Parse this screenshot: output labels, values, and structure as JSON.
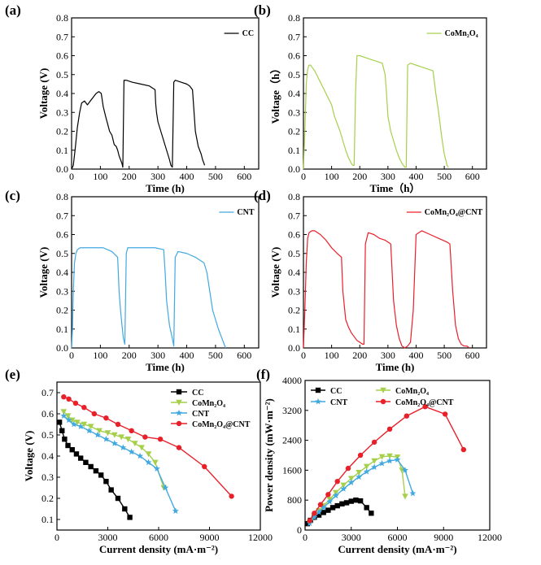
{
  "chart_data": [
    {
      "id": "a",
      "panel_label": "(a)",
      "type": "line",
      "xlabel": "Time (h)",
      "ylabel": "Voltage (V)",
      "xlim": [
        0,
        650
      ],
      "ylim": [
        0,
        0.8
      ],
      "xticks": [
        0,
        100,
        200,
        300,
        400,
        500,
        600
      ],
      "yticks": [
        0.0,
        0.1,
        0.2,
        0.3,
        0.4,
        0.5,
        0.6,
        0.7,
        0.8
      ],
      "legend": "top-right",
      "series": [
        {
          "name": "CC",
          "color": "#000000",
          "x": [
            0,
            6,
            12,
            20,
            28,
            35,
            45,
            55,
            65,
            75,
            85,
            95,
            103,
            110,
            118,
            125,
            132,
            140,
            148,
            155,
            160,
            165,
            170,
            175,
            178,
            182,
            190,
            210,
            240,
            270,
            290,
            292,
            295,
            300,
            310,
            320,
            330,
            340,
            345,
            350,
            355,
            360,
            380,
            400,
            410,
            420,
            430,
            440,
            450,
            455,
            460,
            462
          ],
          "y": [
            0,
            0.02,
            0.1,
            0.22,
            0.3,
            0.35,
            0.36,
            0.34,
            0.36,
            0.38,
            0.4,
            0.41,
            0.4,
            0.33,
            0.28,
            0.24,
            0.2,
            0.18,
            0.13,
            0.12,
            0.1,
            0.07,
            0.05,
            0.03,
            0.01,
            0.47,
            0.47,
            0.46,
            0.45,
            0.44,
            0.42,
            0.35,
            0.3,
            0.25,
            0.2,
            0.15,
            0.1,
            0.05,
            0.02,
            0.01,
            0.46,
            0.47,
            0.46,
            0.45,
            0.44,
            0.42,
            0.2,
            0.12,
            0.08,
            0.05,
            0.03,
            0.02
          ]
        }
      ]
    },
    {
      "id": "b",
      "panel_label": "(b)",
      "type": "line",
      "xlabel": "Time（h）",
      "ylabel": "Voltage（h）",
      "xlim": [
        0,
        650
      ],
      "ylim": [
        0,
        0.8
      ],
      "xticks": [
        0,
        100,
        200,
        300,
        400,
        500,
        600
      ],
      "yticks": [
        0.0,
        0.1,
        0.2,
        0.3,
        0.4,
        0.5,
        0.6,
        0.7,
        0.8
      ],
      "legend": "top-right",
      "series": [
        {
          "name": "CoMn₂O₄",
          "color": "#a6d04c",
          "x": [
            0,
            5,
            10,
            15,
            20,
            25,
            30,
            40,
            50,
            60,
            70,
            80,
            90,
            100,
            110,
            120,
            130,
            140,
            150,
            160,
            170,
            175,
            180,
            185,
            190,
            200,
            220,
            240,
            260,
            280,
            290,
            295,
            300,
            310,
            320,
            330,
            340,
            350,
            360,
            365,
            370,
            380,
            400,
            420,
            440,
            460,
            470,
            480,
            490,
            500,
            510,
            515
          ],
          "y": [
            0,
            0.2,
            0.45,
            0.53,
            0.55,
            0.55,
            0.54,
            0.52,
            0.49,
            0.46,
            0.43,
            0.4,
            0.37,
            0.34,
            0.28,
            0.24,
            0.2,
            0.15,
            0.1,
            0.06,
            0.03,
            0.02,
            0.02,
            0.4,
            0.6,
            0.6,
            0.59,
            0.58,
            0.57,
            0.56,
            0.5,
            0.4,
            0.28,
            0.2,
            0.15,
            0.1,
            0.06,
            0.03,
            0.01,
            0.01,
            0.55,
            0.56,
            0.55,
            0.54,
            0.53,
            0.52,
            0.4,
            0.3,
            0.18,
            0.08,
            0.02,
            0.01
          ]
        }
      ]
    },
    {
      "id": "c",
      "panel_label": "(c)",
      "type": "line",
      "xlabel": "Time (h)",
      "ylabel": "Voltage (V)",
      "xlim": [
        0,
        650
      ],
      "ylim": [
        0,
        0.8
      ],
      "xticks": [
        0,
        100,
        200,
        300,
        400,
        500,
        600
      ],
      "yticks": [
        0.0,
        0.1,
        0.2,
        0.3,
        0.4,
        0.5,
        0.6,
        0.7,
        0.8
      ],
      "legend": "top-right",
      "series": [
        {
          "name": "CNT",
          "color": "#41a9e0",
          "x": [
            0,
            3,
            6,
            10,
            15,
            20,
            30,
            50,
            80,
            110,
            140,
            160,
            165,
            170,
            175,
            180,
            185,
            190,
            195,
            200,
            230,
            260,
            290,
            320,
            325,
            330,
            340,
            350,
            355,
            360,
            370,
            400,
            430,
            460,
            470,
            480,
            490,
            500,
            510,
            520,
            530,
            535
          ],
          "y": [
            0,
            0.1,
            0.3,
            0.45,
            0.5,
            0.52,
            0.53,
            0.53,
            0.53,
            0.53,
            0.51,
            0.48,
            0.3,
            0.2,
            0.12,
            0.05,
            0.02,
            0.5,
            0.53,
            0.53,
            0.53,
            0.53,
            0.53,
            0.52,
            0.4,
            0.25,
            0.12,
            0.05,
            0.01,
            0.48,
            0.51,
            0.5,
            0.48,
            0.45,
            0.4,
            0.3,
            0.2,
            0.15,
            0.1,
            0.06,
            0.02,
            0.0
          ]
        }
      ]
    },
    {
      "id": "d",
      "panel_label": "(d)",
      "type": "line",
      "xlabel": "Time (h)",
      "ylabel": "Voltage (V)",
      "xlim": [
        0,
        650
      ],
      "ylim": [
        0,
        0.8
      ],
      "xticks": [
        0,
        100,
        200,
        300,
        400,
        500,
        600
      ],
      "yticks": [
        0.0,
        0.1,
        0.2,
        0.3,
        0.4,
        0.5,
        0.6,
        0.7,
        0.8
      ],
      "legend": "top-right",
      "series": [
        {
          "name": "CoMn₂O₄@CNT",
          "color": "#e8202a",
          "x": [
            0,
            5,
            10,
            15,
            20,
            30,
            40,
            60,
            80,
            100,
            120,
            135,
            140,
            150,
            160,
            170,
            180,
            190,
            200,
            210,
            215,
            220,
            230,
            250,
            270,
            290,
            300,
            310,
            320,
            330,
            340,
            350,
            360,
            370,
            380,
            390,
            400,
            420,
            450,
            480,
            510,
            520,
            530,
            540,
            550,
            560,
            570,
            580,
            590
          ],
          "y": [
            0,
            0.2,
            0.45,
            0.58,
            0.61,
            0.62,
            0.62,
            0.6,
            0.57,
            0.53,
            0.5,
            0.48,
            0.3,
            0.15,
            0.11,
            0.08,
            0.06,
            0.04,
            0.03,
            0.02,
            0.02,
            0.55,
            0.61,
            0.6,
            0.58,
            0.57,
            0.56,
            0.55,
            0.25,
            0.12,
            0.05,
            0.01,
            0.0,
            0.01,
            0.03,
            0.2,
            0.6,
            0.62,
            0.6,
            0.58,
            0.56,
            0.55,
            0.3,
            0.12,
            0.05,
            0.02,
            0.01,
            0.01,
            0.0
          ]
        }
      ]
    },
    {
      "id": "e",
      "panel_label": "(e)",
      "type": "line",
      "xlabel": "Current density (mA·m⁻²)",
      "ylabel": "Voltage (V)",
      "xlim": [
        0,
        12000
      ],
      "ylim": [
        0.05,
        0.75
      ],
      "xticks": [
        0,
        3000,
        6000,
        9000,
        12000
      ],
      "yticks": [
        0.1,
        0.2,
        0.3,
        0.4,
        0.5,
        0.6,
        0.7
      ],
      "legend": "top-right",
      "series": [
        {
          "name": "CC",
          "color": "#000000",
          "marker": "square",
          "x": [
            150,
            300,
            450,
            650,
            900,
            1150,
            1400,
            1700,
            2000,
            2300,
            2600,
            2900,
            3200,
            3600,
            4000,
            4300
          ],
          "y": [
            0.56,
            0.52,
            0.48,
            0.45,
            0.43,
            0.41,
            0.39,
            0.37,
            0.35,
            0.33,
            0.31,
            0.28,
            0.24,
            0.2,
            0.15,
            0.11
          ]
        },
        {
          "name": "CoMn₂O₄",
          "color": "#a6d04c",
          "marker": "triangle-down",
          "x": [
            400,
            650,
            900,
            1200,
            1600,
            2000,
            2500,
            3000,
            3400,
            3800,
            4200,
            4600,
            5000,
            5400,
            5800,
            6300
          ],
          "y": [
            0.61,
            0.59,
            0.57,
            0.56,
            0.55,
            0.54,
            0.52,
            0.51,
            0.5,
            0.49,
            0.48,
            0.46,
            0.44,
            0.41,
            0.37,
            0.25
          ]
        },
        {
          "name": "CNT",
          "color": "#41a9e0",
          "marker": "star",
          "x": [
            400,
            700,
            1000,
            1400,
            1900,
            2400,
            2900,
            3400,
            3900,
            4400,
            4900,
            5400,
            5900,
            6400,
            7000
          ],
          "y": [
            0.59,
            0.57,
            0.55,
            0.54,
            0.52,
            0.5,
            0.48,
            0.46,
            0.44,
            0.42,
            0.4,
            0.37,
            0.34,
            0.25,
            0.14
          ]
        },
        {
          "name": "CoMn₂O₄@CNT",
          "color": "#e8202a",
          "marker": "circle",
          "x": [
            400,
            700,
            1100,
            1600,
            2200,
            2900,
            3600,
            4400,
            5200,
            6100,
            7200,
            8700,
            10300
          ],
          "y": [
            0.68,
            0.67,
            0.65,
            0.63,
            0.6,
            0.58,
            0.55,
            0.52,
            0.49,
            0.48,
            0.44,
            0.35,
            0.21
          ]
        }
      ]
    },
    {
      "id": "f",
      "panel_label": "(f)",
      "type": "line",
      "xlabel": "Current density (mA·m⁻²)",
      "ylabel": "Power density (mW·m⁻²)",
      "xlim": [
        0,
        12000
      ],
      "ylim": [
        0,
        4000
      ],
      "xticks": [
        0,
        3000,
        6000,
        9000,
        12000
      ],
      "yticks": [
        0,
        800,
        1600,
        2400,
        3200,
        4000
      ],
      "legend": "top-left",
      "series": [
        {
          "name": "CC",
          "color": "#000000",
          "marker": "square",
          "x": [
            150,
            350,
            600,
            900,
            1200,
            1500,
            1800,
            2100,
            2400,
            2700,
            3000,
            3300,
            3600,
            4000,
            4300
          ],
          "y": [
            170,
            260,
            340,
            400,
            470,
            530,
            600,
            650,
            700,
            730,
            770,
            800,
            780,
            600,
            450
          ]
        },
        {
          "name": "CoMn₂O₄",
          "color": "#a6d04c",
          "marker": "triangle-down",
          "x": [
            300,
            600,
            900,
            1200,
            1600,
            2000,
            2500,
            3000,
            3500,
            4000,
            4500,
            5000,
            5500,
            6000,
            6300,
            6500
          ],
          "y": [
            200,
            370,
            520,
            650,
            820,
            1000,
            1200,
            1380,
            1540,
            1700,
            1850,
            1960,
            1980,
            1950,
            1600,
            900
          ]
        },
        {
          "name": "CNT",
          "color": "#41a9e0",
          "marker": "star",
          "x": [
            300,
            600,
            900,
            1200,
            1600,
            2000,
            2500,
            3000,
            3500,
            4000,
            4500,
            5000,
            5500,
            6000,
            6500,
            7000
          ],
          "y": [
            180,
            340,
            480,
            600,
            760,
            920,
            1100,
            1270,
            1420,
            1560,
            1680,
            1780,
            1850,
            1880,
            1600,
            980
          ]
        },
        {
          "name": "CoMn₂O₄@CNT",
          "color": "#e8202a",
          "marker": "circle",
          "x": [
            300,
            600,
            1000,
            1500,
            2100,
            2800,
            3600,
            4500,
            5500,
            6600,
            7800,
            9100,
            10300
          ],
          "y": [
            250,
            450,
            680,
            950,
            1300,
            1650,
            2000,
            2350,
            2700,
            3050,
            3300,
            3100,
            2150
          ]
        }
      ]
    }
  ]
}
